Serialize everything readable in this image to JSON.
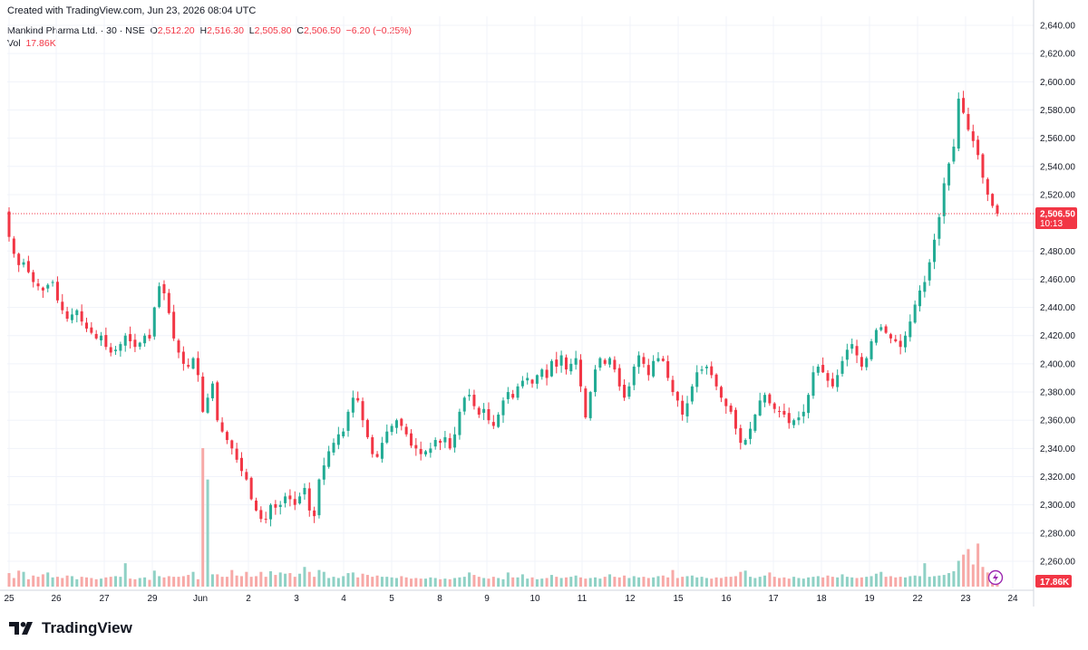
{
  "header": {
    "created": "Created with TradingView.com, Jun 23, 2026 08:04 UTC",
    "symbol": "Mankind Pharma Ltd. · 30 · NSE",
    "o_label": "O",
    "o_value": "2,512.20",
    "h_label": "H",
    "h_value": "2,516.30",
    "l_label": "L",
    "l_value": "2,505.80",
    "c_label": "C",
    "c_value": "2,506.50",
    "change": "−6.20 (−0.25%)",
    "vol_label": "Vol",
    "vol_value": "17.86K"
  },
  "price_tag": {
    "price": "2,506.50",
    "countdown": "10:13"
  },
  "volume_tag": "17.86K",
  "brand": "TradingView",
  "colors": {
    "up": "#22ab94",
    "down": "#f23645",
    "up_vol": "#8fd1c5",
    "down_vol": "#f7a9a7",
    "grid": "#f0f3fa"
  },
  "chart_data": {
    "type": "candlestick",
    "y_ticks": [
      "2,640.00",
      "2,620.00",
      "2,600.00",
      "2,580.00",
      "2,560.00",
      "2,540.00",
      "2,520.00",
      "2,480.00",
      "2,460.00",
      "2,440.00",
      "2,420.00",
      "2,400.00",
      "2,380.00",
      "2,360.00",
      "2,340.00",
      "2,320.00",
      "2,300.00",
      "2,280.00",
      "2,260.00"
    ],
    "y_tick_values": [
      2640,
      2620,
      2600,
      2580,
      2560,
      2540,
      2520,
      2480,
      2460,
      2440,
      2420,
      2400,
      2380,
      2360,
      2340,
      2320,
      2300,
      2280,
      2260
    ],
    "ylim": [
      2249,
      2644
    ],
    "x_labels": [
      "25",
      "26",
      "27",
      "29",
      "Jun",
      "2",
      "3",
      "4",
      "5",
      "8",
      "9",
      "10",
      "11",
      "12",
      "15",
      "16",
      "17",
      "18",
      "19",
      "22",
      "23",
      "24"
    ],
    "last_price": 2506.5,
    "closes": [
      2490,
      2478,
      2470,
      2472,
      2465,
      2458,
      2455,
      2452,
      2456,
      2458,
      2445,
      2438,
      2432,
      2435,
      2438,
      2430,
      2425,
      2422,
      2418,
      2420,
      2412,
      2408,
      2410,
      2414,
      2420,
      2416,
      2412,
      2415,
      2420,
      2418,
      2440,
      2455,
      2450,
      2436,
      2418,
      2408,
      2400,
      2398,
      2404,
      2392,
      2366,
      2376,
      2386,
      2360,
      2352,
      2346,
      2340,
      2332,
      2324,
      2318,
      2304,
      2296,
      2290,
      2290,
      2300,
      2298,
      2300,
      2306,
      2304,
      2300,
      2306,
      2312,
      2296,
      2292,
      2318,
      2328,
      2338,
      2344,
      2350,
      2352,
      2366,
      2376,
      2374,
      2360,
      2348,
      2336,
      2334,
      2344,
      2352,
      2356,
      2360,
      2356,
      2350,
      2342,
      2340,
      2336,
      2338,
      2340,
      2346,
      2344,
      2348,
      2340,
      2350,
      2366,
      2376,
      2378,
      2370,
      2364,
      2368,
      2360,
      2356,
      2364,
      2374,
      2380,
      2376,
      2384,
      2388,
      2390,
      2386,
      2392,
      2396,
      2390,
      2402,
      2398,
      2406,
      2396,
      2400,
      2404,
      2384,
      2362,
      2380,
      2396,
      2404,
      2400,
      2404,
      2396,
      2384,
      2376,
      2384,
      2398,
      2406,
      2400,
      2392,
      2402,
      2404,
      2402,
      2390,
      2380,
      2374,
      2364,
      2372,
      2384,
      2394,
      2396,
      2398,
      2392,
      2384,
      2376,
      2370,
      2366,
      2354,
      2344,
      2346,
      2354,
      2364,
      2374,
      2378,
      2372,
      2368,
      2366,
      2364,
      2358,
      2360,
      2362,
      2366,
      2378,
      2394,
      2398,
      2394,
      2388,
      2384,
      2392,
      2402,
      2410,
      2414,
      2406,
      2398,
      2404,
      2416,
      2424,
      2426,
      2422,
      2418,
      2416,
      2412,
      2420,
      2430,
      2442,
      2452,
      2458,
      2472,
      2488,
      2504,
      2528,
      2542,
      2554,
      2588,
      2578,
      2566,
      2558,
      2548,
      2532,
      2520,
      2512,
      2506.5
    ],
    "volumes": [
      2.2,
      1.4,
      2.6,
      2.4,
      1.2,
      1.8,
      1.6,
      2.0,
      2.3,
      1.5,
      1.6,
      1.4,
      1.8,
      1.7,
      1.2,
      1.6,
      1.5,
      1.4,
      1.2,
      1.3,
      1.5,
      1.6,
      1.7,
      1.6,
      3.8,
      1.3,
      1.2,
      1.4,
      1.5,
      1.1,
      2.6,
      1.7,
      1.5,
      1.7,
      1.6,
      1.6,
      1.7,
      1.9,
      2.4,
      1.2,
      22.5,
      17.4,
      2.0,
      2.0,
      1.6,
      1.6,
      2.7,
      1.8,
      1.7,
      2.4,
      1.6,
      1.7,
      2.4,
      1.6,
      2.5,
      1.9,
      2.3,
      2.1,
      2.2,
      1.6,
      2.1,
      3.2,
      2.4,
      1.6,
      2.7,
      2.4,
      1.4,
      1.6,
      1.4,
      1.7,
      2.2,
      2.3,
      1.5,
      2.1,
      1.9,
      1.6,
      1.8,
      1.6,
      1.6,
      1.5,
      1.4,
      1.7,
      1.5,
      1.3,
      1.4,
      1.3,
      1.3,
      1.5,
      1.4,
      1.2,
      1.3,
      1.2,
      1.4,
      1.5,
      1.6,
      2.3,
      1.9,
      1.6,
      1.4,
      1.3,
      1.6,
      1.4,
      1.2,
      2.3,
      1.5,
      1.5,
      2.0,
      1.3,
      1.5,
      1.2,
      1.3,
      1.4,
      1.9,
      1.6,
      1.4,
      1.5,
      1.6,
      1.8,
      1.5,
      1.3,
      1.4,
      1.5,
      1.3,
      1.6,
      2.0,
      1.6,
      1.5,
      1.8,
      1.4,
      1.7,
      1.5,
      1.6,
      1.4,
      1.5,
      1.7,
      1.8,
      1.5,
      2.7,
      1.4,
      1.6,
      1.7,
      1.8,
      1.5,
      1.6,
      1.4,
      1.3,
      1.5,
      1.4,
      1.6,
      1.6,
      1.7,
      2.4,
      2.6,
      1.6,
      1.4,
      1.6,
      1.8,
      2.3,
      1.6,
      1.4,
      1.5,
      1.3,
      1.6,
      1.4,
      1.3,
      1.5,
      1.6,
      1.7,
      1.5,
      1.8,
      1.6,
      1.5,
      2.0,
      1.6,
      1.5,
      1.4,
      1.5,
      1.6,
      1.7,
      2.1,
      2.4,
      1.6,
      1.7,
      1.5,
      1.6,
      1.5,
      1.7,
      1.8,
      1.7,
      3.8,
      1.6,
      1.7,
      1.8,
      1.9,
      2.2,
      2.5,
      4.2,
      5.2,
      6.1,
      3.6,
      7.0,
      3.2,
      2.3,
      1.7,
      1.9,
      2.0,
      1.4,
      1.3
    ]
  }
}
